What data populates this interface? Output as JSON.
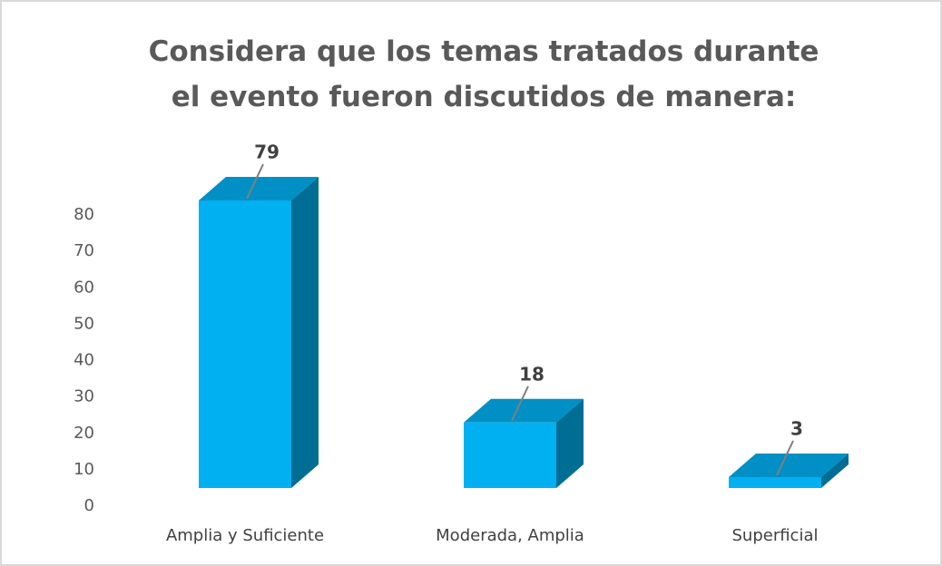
{
  "chart_data": {
    "type": "bar3d",
    "title": "Considera que los temas tratados durante el evento fueron discutidos de manera:",
    "categories": [
      "Amplia y Suficiente",
      "Moderada, Amplia",
      "Superficial"
    ],
    "values": [
      79,
      18,
      3
    ],
    "color": "#00b0f0",
    "ylim": [
      0,
      80
    ],
    "yticks": [
      0,
      10,
      20,
      30,
      40,
      50,
      60,
      70,
      80
    ],
    "grid": false
  }
}
